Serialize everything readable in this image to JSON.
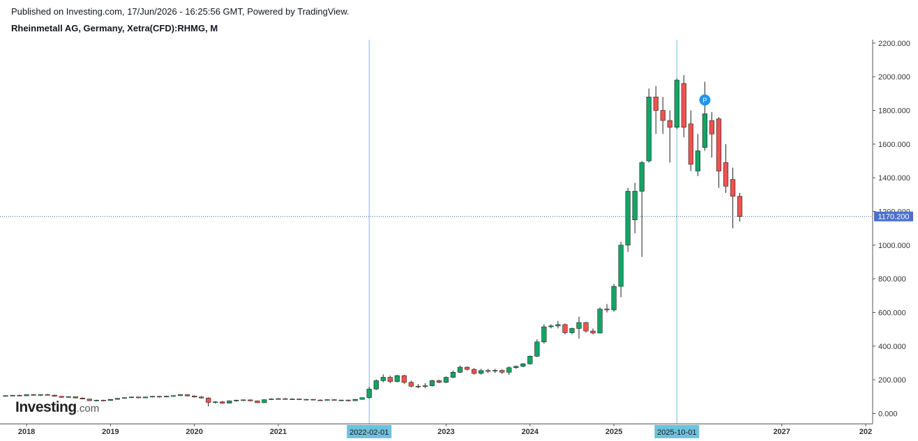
{
  "header": {
    "published": "Published on Investing.com, 17/Jun/2026 - 16:25:56 GMT, Powered by TradingView.",
    "symbol": "Rheinmetall AG, Germany, Xetra(CFD):RHMG, M"
  },
  "logo": {
    "name": "Investing",
    "suffix": ".com"
  },
  "colors": {
    "up": "#13a565",
    "down": "#ef5350",
    "crosshair": "#6cc2dd",
    "price_line": "#2a5d9b",
    "price_badge": "#4c6fd0",
    "marker": "#2196f3"
  },
  "chart_data": {
    "type": "candlestick",
    "interval": "M",
    "ylim": [
      -60,
      2220
    ],
    "y_ticks": [
      0,
      200,
      400,
      600,
      800,
      1000,
      1200,
      1400,
      1600,
      1800,
      2000,
      2200
    ],
    "y_tick_labels": [
      "0.000",
      "200.000",
      "400.000",
      "600.000",
      "800.000",
      "1000.000",
      "1200.000",
      "1400.000",
      "1600.000",
      "1800.000",
      "2000.000",
      "2200.000"
    ],
    "x_range": [
      "2017-10",
      "2028-02"
    ],
    "x_ticks": [
      "2018-01",
      "2019-01",
      "2020-01",
      "2021-01",
      "2023-01",
      "2024-01",
      "2025-01",
      "2027-01",
      "2028-01"
    ],
    "x_tick_labels": [
      "2018",
      "2019",
      "2020",
      "2021",
      "2023",
      "2024",
      "2025",
      "2027",
      "202"
    ],
    "last_price": 1170.2,
    "last_price_label": "1170.200",
    "crosshairs": [
      {
        "date": "2022-02",
        "label": "2022-02-01"
      },
      {
        "date": "2025-10",
        "label": "2025-10-01"
      }
    ],
    "marker": {
      "date": "2026-02",
      "value": 1862,
      "label": "P"
    },
    "candles": [
      {
        "d": "2017-10",
        "o": 104,
        "h": 108,
        "l": 101,
        "c": 106
      },
      {
        "d": "2017-11",
        "o": 106,
        "h": 110,
        "l": 103,
        "c": 108
      },
      {
        "d": "2017-12",
        "o": 108,
        "h": 112,
        "l": 104,
        "c": 105
      },
      {
        "d": "2018-01",
        "o": 105,
        "h": 114,
        "l": 104,
        "c": 112
      },
      {
        "d": "2018-02",
        "o": 112,
        "h": 116,
        "l": 106,
        "c": 109
      },
      {
        "d": "2018-03",
        "o": 109,
        "h": 114,
        "l": 104,
        "c": 112
      },
      {
        "d": "2018-04",
        "o": 112,
        "h": 116,
        "l": 107,
        "c": 109
      },
      {
        "d": "2018-05",
        "o": 109,
        "h": 112,
        "l": 100,
        "c": 102
      },
      {
        "d": "2018-06",
        "o": 102,
        "h": 104,
        "l": 94,
        "c": 96
      },
      {
        "d": "2018-07",
        "o": 96,
        "h": 102,
        "l": 93,
        "c": 100
      },
      {
        "d": "2018-08",
        "o": 100,
        "h": 102,
        "l": 90,
        "c": 92
      },
      {
        "d": "2018-09",
        "o": 92,
        "h": 95,
        "l": 84,
        "c": 86
      },
      {
        "d": "2018-10",
        "o": 86,
        "h": 88,
        "l": 74,
        "c": 76
      },
      {
        "d": "2018-11",
        "o": 76,
        "h": 82,
        "l": 72,
        "c": 79
      },
      {
        "d": "2018-12",
        "o": 79,
        "h": 82,
        "l": 73,
        "c": 77
      },
      {
        "d": "2019-01",
        "o": 77,
        "h": 86,
        "l": 75,
        "c": 84
      },
      {
        "d": "2019-02",
        "o": 84,
        "h": 92,
        "l": 82,
        "c": 90
      },
      {
        "d": "2019-03",
        "o": 90,
        "h": 96,
        "l": 88,
        "c": 94
      },
      {
        "d": "2019-04",
        "o": 94,
        "h": 100,
        "l": 92,
        "c": 98
      },
      {
        "d": "2019-05",
        "o": 98,
        "h": 100,
        "l": 90,
        "c": 93
      },
      {
        "d": "2019-06",
        "o": 93,
        "h": 100,
        "l": 91,
        "c": 98
      },
      {
        "d": "2019-07",
        "o": 98,
        "h": 104,
        "l": 96,
        "c": 102
      },
      {
        "d": "2019-08",
        "o": 102,
        "h": 104,
        "l": 94,
        "c": 98
      },
      {
        "d": "2019-09",
        "o": 98,
        "h": 105,
        "l": 96,
        "c": 103
      },
      {
        "d": "2019-10",
        "o": 103,
        "h": 108,
        "l": 100,
        "c": 106
      },
      {
        "d": "2019-11",
        "o": 106,
        "h": 114,
        "l": 104,
        "c": 112
      },
      {
        "d": "2019-12",
        "o": 112,
        "h": 114,
        "l": 102,
        "c": 104
      },
      {
        "d": "2020-01",
        "o": 104,
        "h": 107,
        "l": 94,
        "c": 98
      },
      {
        "d": "2020-02",
        "o": 98,
        "h": 104,
        "l": 88,
        "c": 92
      },
      {
        "d": "2020-03",
        "o": 92,
        "h": 96,
        "l": 42,
        "c": 66
      },
      {
        "d": "2020-04",
        "o": 66,
        "h": 74,
        "l": 60,
        "c": 69
      },
      {
        "d": "2020-05",
        "o": 69,
        "h": 74,
        "l": 58,
        "c": 61
      },
      {
        "d": "2020-06",
        "o": 61,
        "h": 78,
        "l": 60,
        "c": 75
      },
      {
        "d": "2020-07",
        "o": 75,
        "h": 82,
        "l": 70,
        "c": 79
      },
      {
        "d": "2020-08",
        "o": 79,
        "h": 84,
        "l": 74,
        "c": 81
      },
      {
        "d": "2020-09",
        "o": 81,
        "h": 84,
        "l": 72,
        "c": 75
      },
      {
        "d": "2020-10",
        "o": 75,
        "h": 76,
        "l": 62,
        "c": 64
      },
      {
        "d": "2020-11",
        "o": 64,
        "h": 84,
        "l": 62,
        "c": 82
      },
      {
        "d": "2020-12",
        "o": 82,
        "h": 90,
        "l": 80,
        "c": 86
      },
      {
        "d": "2021-01",
        "o": 86,
        "h": 92,
        "l": 84,
        "c": 88
      },
      {
        "d": "2021-02",
        "o": 88,
        "h": 92,
        "l": 82,
        "c": 84
      },
      {
        "d": "2021-03",
        "o": 84,
        "h": 90,
        "l": 81,
        "c": 86
      },
      {
        "d": "2021-04",
        "o": 86,
        "h": 88,
        "l": 80,
        "c": 82
      },
      {
        "d": "2021-05",
        "o": 82,
        "h": 86,
        "l": 78,
        "c": 84
      },
      {
        "d": "2021-06",
        "o": 84,
        "h": 86,
        "l": 78,
        "c": 80
      },
      {
        "d": "2021-07",
        "o": 80,
        "h": 84,
        "l": 76,
        "c": 78
      },
      {
        "d": "2021-08",
        "o": 78,
        "h": 84,
        "l": 76,
        "c": 82
      },
      {
        "d": "2021-09",
        "o": 82,
        "h": 84,
        "l": 76,
        "c": 78
      },
      {
        "d": "2021-10",
        "o": 78,
        "h": 82,
        "l": 74,
        "c": 80
      },
      {
        "d": "2021-11",
        "o": 80,
        "h": 82,
        "l": 72,
        "c": 76
      },
      {
        "d": "2021-12",
        "o": 76,
        "h": 86,
        "l": 74,
        "c": 84
      },
      {
        "d": "2022-01",
        "o": 84,
        "h": 96,
        "l": 82,
        "c": 94
      },
      {
        "d": "2022-02",
        "o": 94,
        "h": 158,
        "l": 88,
        "c": 145
      },
      {
        "d": "2022-03",
        "o": 145,
        "h": 202,
        "l": 140,
        "c": 195
      },
      {
        "d": "2022-04",
        "o": 195,
        "h": 232,
        "l": 186,
        "c": 215
      },
      {
        "d": "2022-05",
        "o": 215,
        "h": 225,
        "l": 180,
        "c": 190
      },
      {
        "d": "2022-06",
        "o": 190,
        "h": 230,
        "l": 185,
        "c": 225
      },
      {
        "d": "2022-07",
        "o": 225,
        "h": 230,
        "l": 175,
        "c": 185
      },
      {
        "d": "2022-08",
        "o": 185,
        "h": 195,
        "l": 155,
        "c": 162
      },
      {
        "d": "2022-09",
        "o": 162,
        "h": 175,
        "l": 150,
        "c": 160
      },
      {
        "d": "2022-10",
        "o": 160,
        "h": 180,
        "l": 150,
        "c": 165
      },
      {
        "d": "2022-11",
        "o": 165,
        "h": 200,
        "l": 160,
        "c": 195
      },
      {
        "d": "2022-12",
        "o": 195,
        "h": 200,
        "l": 180,
        "c": 185
      },
      {
        "d": "2023-01",
        "o": 185,
        "h": 220,
        "l": 180,
        "c": 215
      },
      {
        "d": "2023-02",
        "o": 215,
        "h": 255,
        "l": 210,
        "c": 245
      },
      {
        "d": "2023-03",
        "o": 245,
        "h": 285,
        "l": 240,
        "c": 275
      },
      {
        "d": "2023-04",
        "o": 275,
        "h": 280,
        "l": 255,
        "c": 262
      },
      {
        "d": "2023-05",
        "o": 262,
        "h": 270,
        "l": 230,
        "c": 238
      },
      {
        "d": "2023-06",
        "o": 238,
        "h": 265,
        "l": 232,
        "c": 255
      },
      {
        "d": "2023-07",
        "o": 255,
        "h": 265,
        "l": 240,
        "c": 252
      },
      {
        "d": "2023-08",
        "o": 252,
        "h": 265,
        "l": 240,
        "c": 256
      },
      {
        "d": "2023-09",
        "o": 256,
        "h": 262,
        "l": 235,
        "c": 245
      },
      {
        "d": "2023-10",
        "o": 245,
        "h": 280,
        "l": 230,
        "c": 272
      },
      {
        "d": "2023-11",
        "o": 272,
        "h": 285,
        "l": 265,
        "c": 280
      },
      {
        "d": "2023-12",
        "o": 280,
        "h": 300,
        "l": 275,
        "c": 295
      },
      {
        "d": "2024-01",
        "o": 295,
        "h": 345,
        "l": 290,
        "c": 340
      },
      {
        "d": "2024-02",
        "o": 340,
        "h": 440,
        "l": 335,
        "c": 425
      },
      {
        "d": "2024-03",
        "o": 425,
        "h": 530,
        "l": 415,
        "c": 515
      },
      {
        "d": "2024-04",
        "o": 515,
        "h": 530,
        "l": 505,
        "c": 520
      },
      {
        "d": "2024-05",
        "o": 520,
        "h": 550,
        "l": 505,
        "c": 528
      },
      {
        "d": "2024-06",
        "o": 528,
        "h": 535,
        "l": 470,
        "c": 480
      },
      {
        "d": "2024-07",
        "o": 480,
        "h": 510,
        "l": 470,
        "c": 505
      },
      {
        "d": "2024-08",
        "o": 505,
        "h": 575,
        "l": 445,
        "c": 540
      },
      {
        "d": "2024-09",
        "o": 540,
        "h": 545,
        "l": 480,
        "c": 490
      },
      {
        "d": "2024-10",
        "o": 490,
        "h": 505,
        "l": 470,
        "c": 478
      },
      {
        "d": "2024-11",
        "o": 478,
        "h": 630,
        "l": 475,
        "c": 620
      },
      {
        "d": "2024-12",
        "o": 620,
        "h": 650,
        "l": 600,
        "c": 615
      },
      {
        "d": "2025-01",
        "o": 615,
        "h": 770,
        "l": 605,
        "c": 755
      },
      {
        "d": "2025-02",
        "o": 755,
        "h": 1020,
        "l": 690,
        "c": 1000
      },
      {
        "d": "2025-03",
        "o": 1000,
        "h": 1340,
        "l": 960,
        "c": 1320
      },
      {
        "d": "2025-04",
        "o": 1150,
        "h": 1370,
        "l": 1070,
        "c": 1320
      },
      {
        "d": "2025-05",
        "o": 1320,
        "h": 1500,
        "l": 930,
        "c": 1490
      },
      {
        "d": "2025-06",
        "o": 1500,
        "h": 1930,
        "l": 1490,
        "c": 1880
      },
      {
        "d": "2025-07",
        "o": 1880,
        "h": 1945,
        "l": 1660,
        "c": 1800
      },
      {
        "d": "2025-08",
        "o": 1800,
        "h": 1880,
        "l": 1660,
        "c": 1740
      },
      {
        "d": "2025-09",
        "o": 1740,
        "h": 1800,
        "l": 1490,
        "c": 1700
      },
      {
        "d": "2025-10",
        "o": 1700,
        "h": 1990,
        "l": 1690,
        "c": 1980
      },
      {
        "d": "2025-11",
        "o": 1960,
        "h": 2010,
        "l": 1640,
        "c": 1700
      },
      {
        "d": "2025-12",
        "o": 1720,
        "h": 1800,
        "l": 1440,
        "c": 1480
      },
      {
        "d": "2026-01",
        "o": 1440,
        "h": 1660,
        "l": 1410,
        "c": 1560
      },
      {
        "d": "2026-02",
        "o": 1580,
        "h": 1970,
        "l": 1560,
        "c": 1780
      },
      {
        "d": "2026-03",
        "o": 1740,
        "h": 1790,
        "l": 1520,
        "c": 1660
      },
      {
        "d": "2026-04",
        "o": 1750,
        "h": 1760,
        "l": 1340,
        "c": 1440
      },
      {
        "d": "2026-05",
        "o": 1490,
        "h": 1600,
        "l": 1310,
        "c": 1350
      },
      {
        "d": "2026-06",
        "o": 1390,
        "h": 1460,
        "l": 1100,
        "c": 1290
      },
      {
        "d": "2026-07",
        "o": 1290,
        "h": 1310,
        "l": 1140,
        "c": 1170
      }
    ]
  }
}
